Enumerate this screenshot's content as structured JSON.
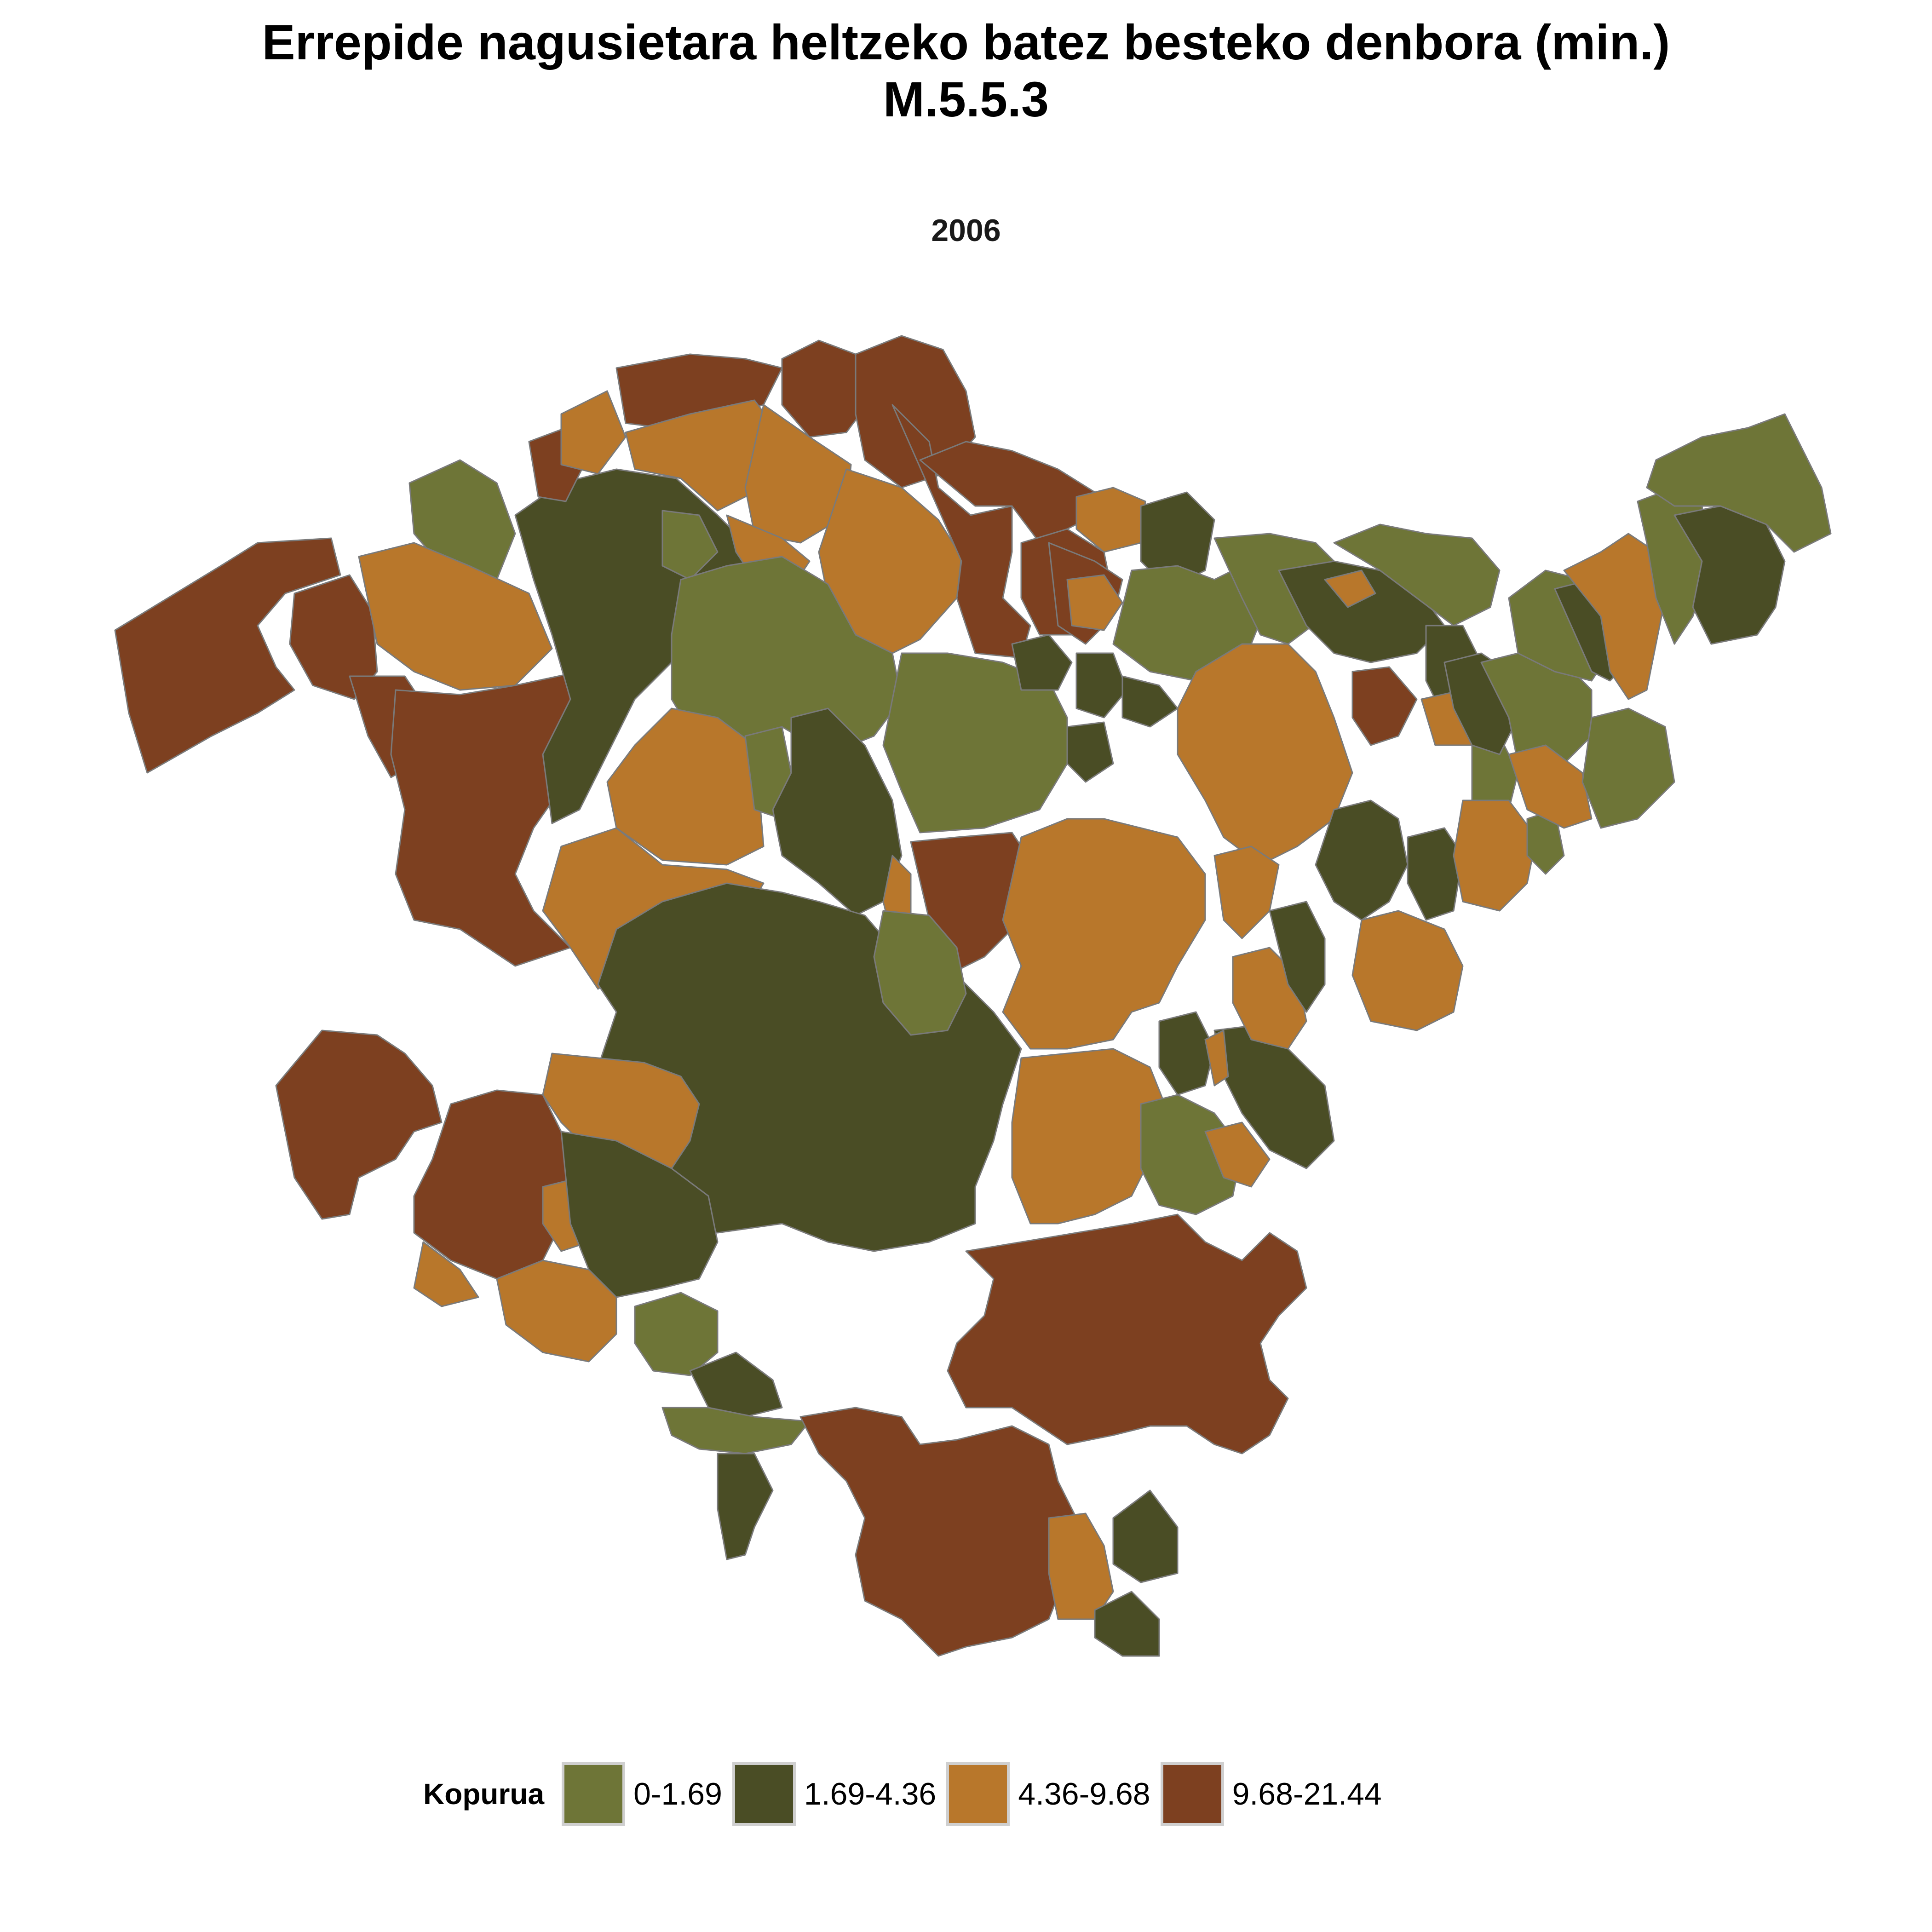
{
  "title": {
    "line1": "Errepide nagusietara heltzeko batez besteko denbora (min.)",
    "line2": "M.5.5.3"
  },
  "subtitle": "2006",
  "legend": {
    "title": "Kopurua",
    "items": [
      {
        "label": "0-1.69",
        "color": "#6E7537"
      },
      {
        "label": "1.69-4.36",
        "color": "#4A4D25"
      },
      {
        "label": "4.36-9.68",
        "color": "#B8772B"
      },
      {
        "label": "9.68-21.44",
        "color": "#7D4020"
      }
    ]
  }
}
